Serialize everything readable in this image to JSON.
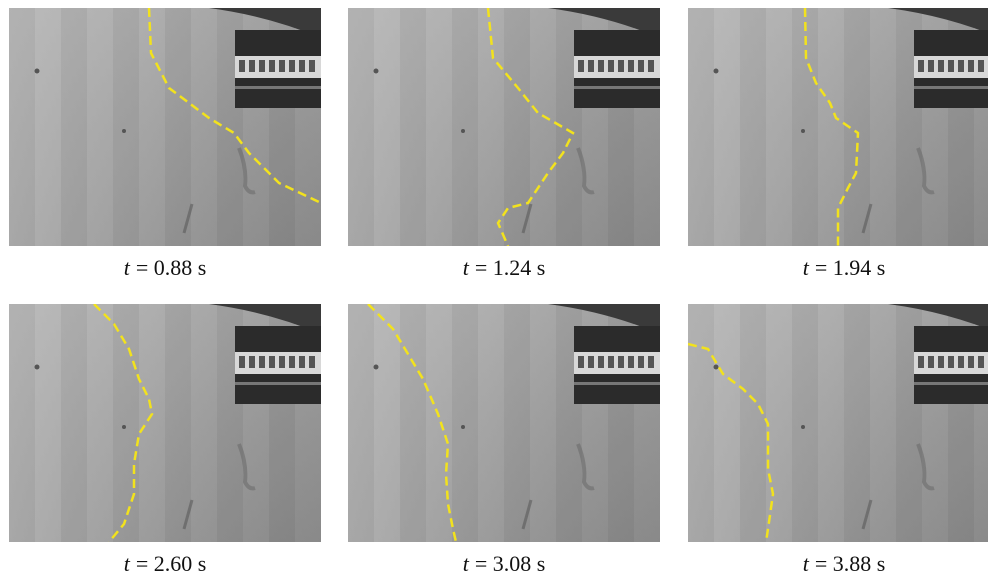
{
  "panels": [
    {
      "variable": "t",
      "value": "= 0.88 s"
    },
    {
      "variable": "t",
      "value": "= 1.24 s"
    },
    {
      "variable": "t",
      "value": "= 1.94 s"
    },
    {
      "variable": "t",
      "value": "= 2.60 s"
    },
    {
      "variable": "t",
      "value": "= 3.08 s"
    },
    {
      "variable": "t",
      "value": "= 3.88 s"
    }
  ]
}
